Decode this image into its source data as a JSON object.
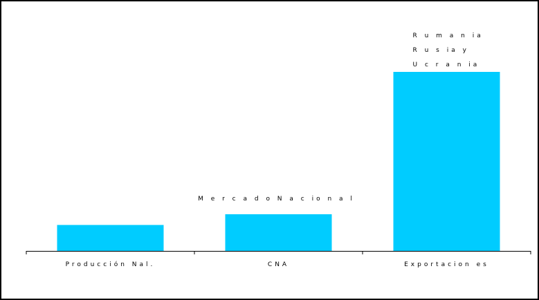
{
  "chart_data": {
    "type": "bar",
    "categories": [
      "Producción  Nal.",
      "CNA",
      "Exportacion es"
    ],
    "values": [
      14.5,
      20.5,
      100
    ],
    "ylim": [
      0,
      100
    ],
    "title": "",
    "xlabel": "",
    "ylabel": "",
    "grid": false,
    "legend": "none",
    "bar_color": "#00CCFF",
    "annotations": [
      {
        "name": "annotation-mercado-nacional",
        "lines": [
          "M e r c a d o  N a c io n a l"
        ],
        "category_index": 1
      },
      {
        "name": "annotation-rumania-rusia-ucrania",
        "lines": [
          "R u m  a n ia",
          "R u s ia  y",
          "U c r a n ia"
        ],
        "category_index": 2
      }
    ]
  }
}
